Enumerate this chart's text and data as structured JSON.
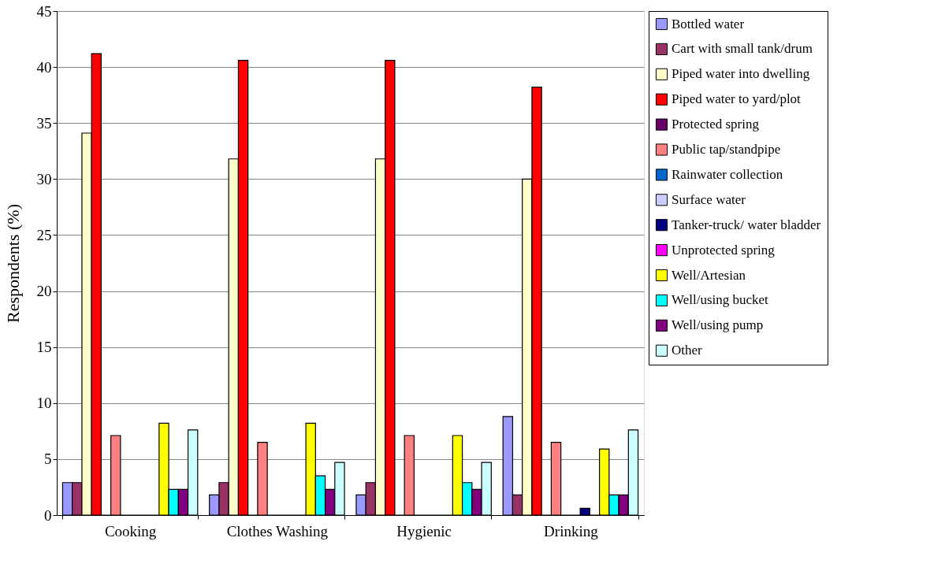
{
  "chart_data": {
    "type": "bar",
    "ylabel": "Respondents (%)",
    "categories": [
      "Cooking",
      "Clothes Washing",
      "Hygienic",
      "Drinking"
    ],
    "series": [
      {
        "name": "Bottled water",
        "color": "#9999ff",
        "values": [
          2.9,
          1.8,
          1.8,
          8.8
        ]
      },
      {
        "name": "Cart with small tank/drum",
        "color": "#993366",
        "values": [
          2.9,
          2.9,
          2.9,
          1.8
        ]
      },
      {
        "name": "Piped water into dwelling",
        "color": "#ffffcc",
        "values": [
          34.1,
          31.8,
          31.8,
          30.0
        ]
      },
      {
        "name": "Piped water to yard/plot",
        "color": "#ff0000",
        "values": [
          41.2,
          40.6,
          40.6,
          38.2
        ]
      },
      {
        "name": "Protected spring",
        "color": "#660066",
        "values": [
          0,
          0,
          0,
          0
        ]
      },
      {
        "name": "Public tap/standpipe",
        "color": "#ff8080",
        "values": [
          7.1,
          6.5,
          7.1,
          6.5
        ]
      },
      {
        "name": "Rainwater collection",
        "color": "#0066cc",
        "values": [
          0,
          0,
          0,
          0
        ]
      },
      {
        "name": "Surface water",
        "color": "#ccccff",
        "values": [
          0,
          0,
          0,
          0
        ]
      },
      {
        "name": "Tanker-truck/ water bladder",
        "color": "#000080",
        "values": [
          0,
          0,
          0,
          0.6
        ]
      },
      {
        "name": "Unprotected spring",
        "color": "#ff00ff",
        "values": [
          0,
          0,
          0,
          0
        ]
      },
      {
        "name": "Well/Artesian",
        "color": "#ffff00",
        "values": [
          8.2,
          8.2,
          7.1,
          5.9
        ]
      },
      {
        "name": "Well/using bucket",
        "color": "#00ffff",
        "values": [
          2.3,
          3.5,
          2.9,
          1.8
        ]
      },
      {
        "name": "Well/using pump",
        "color": "#800080",
        "values": [
          2.3,
          2.3,
          2.3,
          1.8
        ]
      },
      {
        "name": "Other",
        "color": "#ccffff",
        "values": [
          7.6,
          4.7,
          4.7,
          7.6
        ]
      }
    ],
    "ylim": [
      0,
      45
    ],
    "yticks": [
      0,
      5,
      10,
      15,
      20,
      25,
      30,
      35,
      40,
      45
    ],
    "grid": "y",
    "legend": "right"
  }
}
